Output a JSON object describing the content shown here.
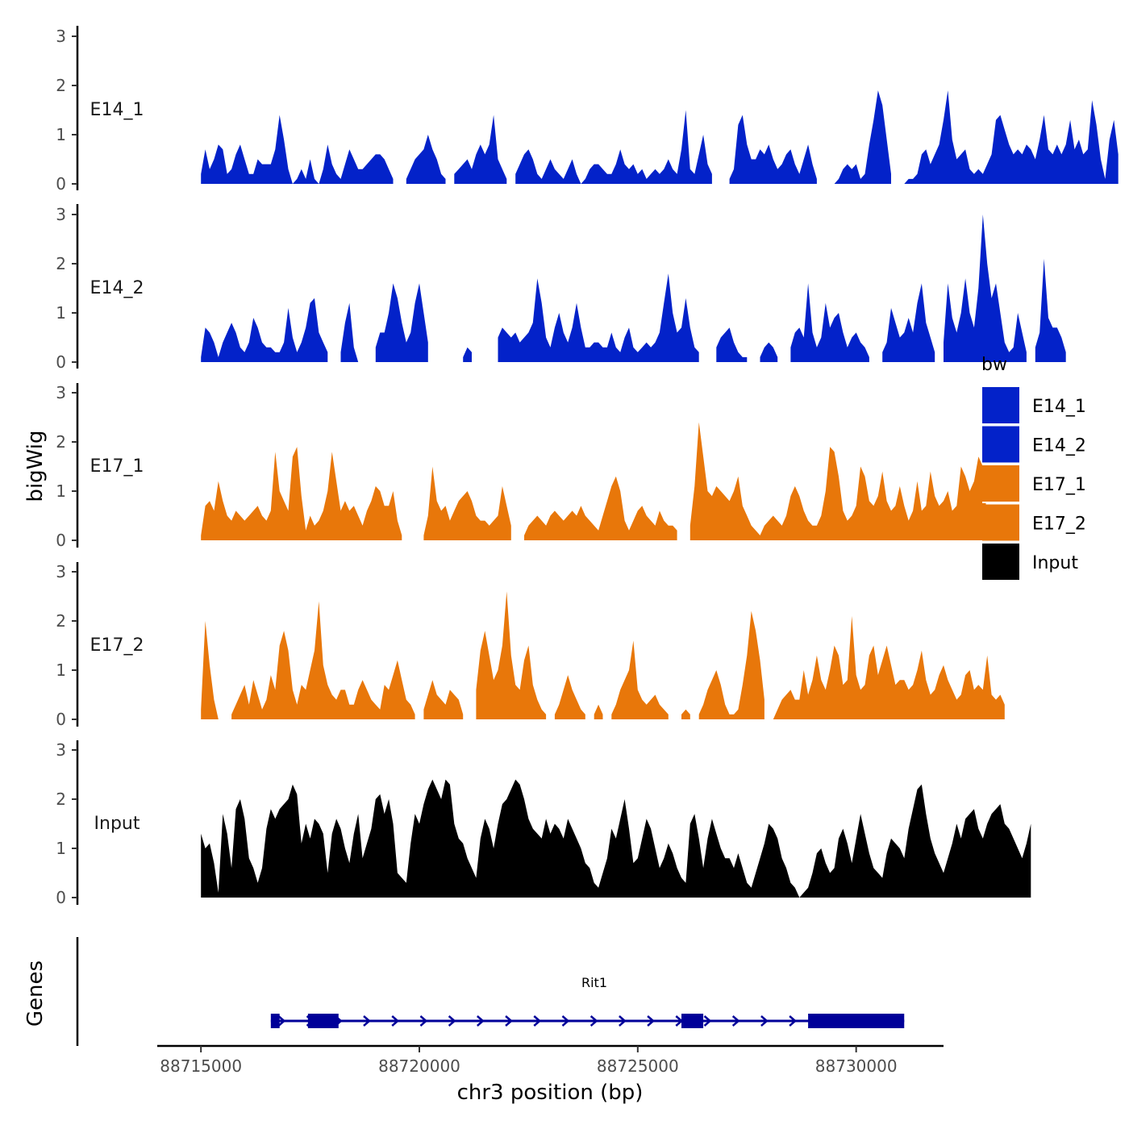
{
  "chart_data": {
    "type": "area",
    "y_axis_title": "bigWig",
    "gene_track_title": "Genes",
    "x_axis_title": "chr3 position (bp)",
    "x_range": [
      88714000,
      88732000
    ],
    "x_ticks": [
      88715000,
      88720000,
      88725000,
      88730000
    ],
    "x_tick_labels": [
      "88715000",
      "88720000",
      "88725000",
      "88730000"
    ],
    "y_range": [
      0,
      3.15
    ],
    "y_ticks": [
      0,
      1,
      2,
      3
    ],
    "y_tick_labels": [
      "0",
      "1",
      "2",
      "3"
    ],
    "legend": {
      "title": "bw",
      "position": "right",
      "entries": [
        {
          "label": "E14_1",
          "color": "#0322C9"
        },
        {
          "label": "E14_2",
          "color": "#0322C9"
        },
        {
          "label": "E17_1",
          "color": "#E8770A"
        },
        {
          "label": "E17_2",
          "color": "#E8770A"
        },
        {
          "label": "Input",
          "color": "#000000"
        }
      ]
    },
    "series": [
      {
        "name": "E14_1",
        "color": "#0322C9",
        "x_start": 88715000,
        "x_step": 100,
        "values": [
          0.2,
          0.7,
          0.3,
          0.5,
          0.8,
          0.7,
          0.2,
          0.3,
          0.6,
          0.8,
          0.5,
          0.2,
          0.2,
          0.5,
          0.4,
          0.4,
          0.4,
          0.7,
          1.4,
          0.9,
          0.3,
          0.0,
          0.1,
          0.3,
          0.1,
          0.5,
          0.1,
          0.0,
          0.3,
          0.8,
          0.4,
          0.2,
          0.1,
          0.4,
          0.7,
          0.5,
          0.3,
          0.3,
          0.4,
          0.5,
          0.6,
          0.6,
          0.5,
          0.3,
          0.1,
          null,
          null,
          0.1,
          0.3,
          0.5,
          0.6,
          0.7,
          1.0,
          0.7,
          0.5,
          0.2,
          0.1,
          null,
          0.2,
          0.3,
          0.4,
          0.5,
          0.3,
          0.6,
          0.8,
          0.6,
          0.8,
          1.4,
          0.5,
          0.3,
          0.1,
          null,
          0.2,
          0.4,
          0.6,
          0.7,
          0.5,
          0.2,
          0.1,
          0.3,
          0.5,
          0.3,
          0.2,
          0.1,
          0.3,
          0.5,
          0.2,
          0.0,
          0.1,
          0.3,
          0.4,
          0.4,
          0.3,
          0.2,
          0.2,
          0.4,
          0.7,
          0.4,
          0.3,
          0.4,
          0.2,
          0.3,
          0.1,
          0.2,
          0.3,
          0.2,
          0.3,
          0.5,
          0.3,
          0.2,
          0.7,
          1.5,
          0.3,
          0.2,
          0.6,
          1.0,
          0.4,
          0.2,
          null,
          null,
          null,
          0.1,
          0.3,
          1.2,
          1.4,
          0.8,
          0.5,
          0.5,
          0.7,
          0.6,
          0.8,
          0.5,
          0.3,
          0.4,
          0.6,
          0.7,
          0.4,
          0.2,
          0.5,
          0.8,
          0.4,
          0.1,
          null,
          null,
          null,
          0.0,
          0.1,
          0.3,
          0.4,
          0.3,
          0.4,
          0.1,
          0.2,
          0.8,
          1.3,
          1.9,
          1.6,
          0.9,
          0.2,
          null,
          null,
          0.0,
          0.1,
          0.1,
          0.2,
          0.6,
          0.7,
          0.4,
          0.6,
          0.8,
          1.3,
          1.9,
          0.9,
          0.5,
          0.6,
          0.7,
          0.3,
          0.2,
          0.3,
          0.2,
          0.4,
          0.6,
          1.3,
          1.4,
          1.1,
          0.8,
          0.6,
          0.7,
          0.6,
          0.8,
          0.7,
          0.5,
          0.9,
          1.4,
          0.7,
          0.6,
          0.8,
          0.6,
          0.8,
          1.3,
          0.7,
          0.9,
          0.6,
          0.7,
          1.7,
          1.2,
          0.5,
          0.1,
          0.9,
          1.3,
          0.6
        ]
      },
      {
        "name": "E14_2",
        "color": "#0322C9",
        "x_start": 88715000,
        "x_step": 100,
        "values": [
          0.1,
          0.7,
          0.6,
          0.4,
          0.1,
          0.4,
          0.6,
          0.8,
          0.6,
          0.3,
          0.2,
          0.4,
          0.9,
          0.7,
          0.4,
          0.3,
          0.3,
          0.2,
          0.2,
          0.4,
          1.1,
          0.5,
          0.2,
          0.4,
          0.7,
          1.2,
          1.3,
          0.6,
          0.4,
          0.2,
          null,
          null,
          0.2,
          0.8,
          1.2,
          0.3,
          0.0,
          null,
          null,
          null,
          0.3,
          0.6,
          0.6,
          1.0,
          1.6,
          1.3,
          0.8,
          0.4,
          0.6,
          1.2,
          1.6,
          1.0,
          0.4,
          null,
          null,
          null,
          null,
          null,
          null,
          null,
          0.1,
          0.3,
          0.2,
          null,
          null,
          null,
          null,
          null,
          0.5,
          0.7,
          0.6,
          0.5,
          0.6,
          0.4,
          0.5,
          0.6,
          0.8,
          1.7,
          1.2,
          0.5,
          0.3,
          0.7,
          1.0,
          0.6,
          0.4,
          0.7,
          1.2,
          0.7,
          0.3,
          0.3,
          0.4,
          0.4,
          0.3,
          0.3,
          0.6,
          0.3,
          0.2,
          0.5,
          0.7,
          0.3,
          0.2,
          0.3,
          0.4,
          0.3,
          0.4,
          0.6,
          1.2,
          1.8,
          1.0,
          0.6,
          0.7,
          1.3,
          0.7,
          0.3,
          0.2,
          null,
          null,
          null,
          0.3,
          0.5,
          0.6,
          0.7,
          0.4,
          0.2,
          0.1,
          0.1,
          null,
          null,
          0.1,
          0.3,
          0.4,
          0.3,
          0.1,
          null,
          null,
          0.3,
          0.6,
          0.7,
          0.5,
          1.6,
          0.6,
          0.3,
          0.5,
          1.2,
          0.7,
          0.9,
          1.0,
          0.6,
          0.3,
          0.5,
          0.6,
          0.4,
          0.3,
          0.1,
          null,
          null,
          0.2,
          0.4,
          1.1,
          0.8,
          0.5,
          0.6,
          0.9,
          0.6,
          1.2,
          1.6,
          0.8,
          0.5,
          0.2,
          null,
          0.4,
          1.6,
          0.9,
          0.6,
          1.0,
          1.7,
          1.0,
          0.7,
          1.5,
          3.0,
          2.0,
          1.3,
          1.6,
          1.0,
          0.4,
          0.2,
          0.3,
          1.0,
          0.6,
          0.2,
          null,
          0.3,
          0.6,
          2.1,
          0.9,
          0.7,
          0.7,
          0.5,
          0.2,
          null
        ]
      },
      {
        "name": "E17_1",
        "color": "#E8770A",
        "x_start": 88715000,
        "x_step": 100,
        "values": [
          0.1,
          0.7,
          0.8,
          0.6,
          1.2,
          0.8,
          0.5,
          0.4,
          0.6,
          0.5,
          0.4,
          0.5,
          0.6,
          0.7,
          0.5,
          0.4,
          0.6,
          1.8,
          1.0,
          0.8,
          0.6,
          1.7,
          1.9,
          0.9,
          0.2,
          0.5,
          0.3,
          0.4,
          0.6,
          1.0,
          1.8,
          1.2,
          0.6,
          0.8,
          0.6,
          0.7,
          0.5,
          0.3,
          0.6,
          0.8,
          1.1,
          1.0,
          0.7,
          0.7,
          1.0,
          0.4,
          0.1,
          null,
          null,
          null,
          null,
          0.1,
          0.5,
          1.5,
          0.8,
          0.6,
          0.7,
          0.4,
          0.6,
          0.8,
          0.9,
          1.0,
          0.8,
          0.5,
          0.4,
          0.4,
          0.3,
          0.4,
          0.5,
          1.1,
          0.7,
          0.3,
          null,
          null,
          0.1,
          0.3,
          0.4,
          0.5,
          0.4,
          0.3,
          0.5,
          0.6,
          0.5,
          0.4,
          0.5,
          0.6,
          0.5,
          0.7,
          0.5,
          0.4,
          0.3,
          0.2,
          0.5,
          0.8,
          1.1,
          1.3,
          1.0,
          0.4,
          0.2,
          0.4,
          0.6,
          0.7,
          0.5,
          0.4,
          0.3,
          0.6,
          0.4,
          0.3,
          0.3,
          0.2,
          null,
          null,
          0.3,
          1.1,
          2.4,
          1.7,
          1.0,
          0.9,
          1.1,
          1.0,
          0.9,
          0.8,
          1.0,
          1.3,
          0.7,
          0.5,
          0.3,
          0.2,
          0.1,
          0.3,
          0.4,
          0.5,
          0.4,
          0.3,
          0.5,
          0.9,
          1.1,
          0.9,
          0.6,
          0.4,
          0.3,
          0.3,
          0.5,
          1.0,
          1.9,
          1.8,
          1.3,
          0.6,
          0.4,
          0.5,
          0.7,
          1.5,
          1.3,
          0.8,
          0.7,
          0.9,
          1.4,
          0.8,
          0.6,
          0.7,
          1.1,
          0.7,
          0.4,
          0.6,
          1.2,
          0.6,
          0.7,
          1.4,
          0.9,
          0.7,
          0.8,
          1.0,
          0.6,
          0.7,
          1.5,
          1.3,
          1.0,
          1.2,
          1.7,
          1.5,
          0.4,
          0.4,
          null
        ]
      },
      {
        "name": "E17_2",
        "color": "#E8770A",
        "x_start": 88715000,
        "x_step": 100,
        "values": [
          0.2,
          2.0,
          1.1,
          0.4,
          0.0,
          null,
          null,
          0.1,
          0.3,
          0.5,
          0.7,
          0.3,
          0.8,
          0.5,
          0.2,
          0.4,
          0.9,
          0.6,
          1.5,
          1.8,
          1.4,
          0.6,
          0.3,
          0.7,
          0.6,
          1.0,
          1.4,
          2.4,
          1.1,
          0.7,
          0.5,
          0.4,
          0.6,
          0.6,
          0.3,
          0.3,
          0.6,
          0.8,
          0.6,
          0.4,
          0.3,
          0.2,
          0.7,
          0.6,
          0.9,
          1.2,
          0.8,
          0.4,
          0.3,
          0.1,
          null,
          0.2,
          0.5,
          0.8,
          0.5,
          0.4,
          0.3,
          0.6,
          0.5,
          0.4,
          0.1,
          null,
          null,
          0.6,
          1.4,
          1.8,
          1.3,
          0.8,
          1.0,
          1.5,
          2.6,
          1.3,
          0.7,
          0.6,
          1.2,
          1.5,
          0.7,
          0.4,
          0.2,
          0.1,
          null,
          0.1,
          0.3,
          0.6,
          0.9,
          0.6,
          0.4,
          0.2,
          0.1,
          null,
          0.1,
          0.3,
          0.1,
          null,
          0.1,
          0.3,
          0.6,
          0.8,
          1.0,
          1.6,
          0.6,
          0.4,
          0.3,
          0.4,
          0.5,
          0.3,
          0.2,
          0.1,
          null,
          null,
          0.1,
          0.2,
          0.1,
          null,
          0.1,
          0.3,
          0.6,
          0.8,
          1.0,
          0.7,
          0.3,
          0.1,
          0.1,
          0.2,
          0.7,
          1.3,
          2.2,
          1.8,
          1.2,
          0.4,
          null,
          0.0,
          0.2,
          0.4,
          0.5,
          0.6,
          0.4,
          0.4,
          1.0,
          0.5,
          0.8,
          1.3,
          0.8,
          0.6,
          1.0,
          1.5,
          1.3,
          0.7,
          0.8,
          2.1,
          0.9,
          0.6,
          0.7,
          1.3,
          1.5,
          0.9,
          1.2,
          1.5,
          1.1,
          0.7,
          0.8,
          0.8,
          0.6,
          0.7,
          1.0,
          1.4,
          0.8,
          0.5,
          0.6,
          0.9,
          1.1,
          0.8,
          0.6,
          0.4,
          0.5,
          0.9,
          1.0,
          0.6,
          0.7,
          0.6,
          1.3,
          0.5,
          0.4,
          0.5,
          0.3
        ]
      },
      {
        "name": "Input",
        "color": "#000000",
        "x_start": 88715000,
        "x_step": 100,
        "values": [
          1.3,
          1.0,
          1.1,
          0.7,
          0.1,
          1.7,
          1.3,
          0.6,
          1.8,
          2.0,
          1.6,
          0.8,
          0.6,
          0.3,
          0.6,
          1.4,
          1.8,
          1.6,
          1.8,
          1.9,
          2.0,
          2.3,
          2.1,
          1.1,
          1.5,
          1.2,
          1.6,
          1.5,
          1.3,
          0.5,
          1.3,
          1.6,
          1.4,
          1.0,
          0.7,
          1.3,
          1.7,
          0.8,
          1.1,
          1.4,
          2.0,
          2.1,
          1.7,
          2.0,
          1.5,
          0.5,
          0.4,
          0.3,
          1.1,
          1.7,
          1.5,
          1.9,
          2.2,
          2.4,
          2.2,
          2.0,
          2.4,
          2.3,
          1.5,
          1.2,
          1.1,
          0.8,
          0.6,
          0.4,
          1.2,
          1.6,
          1.4,
          1.0,
          1.5,
          1.9,
          2.0,
          2.2,
          2.4,
          2.3,
          2.0,
          1.6,
          1.4,
          1.3,
          1.2,
          1.6,
          1.3,
          1.5,
          1.4,
          1.2,
          1.6,
          1.4,
          1.2,
          1.0,
          0.7,
          0.6,
          0.3,
          0.2,
          0.5,
          0.8,
          1.4,
          1.2,
          1.6,
          2.0,
          1.4,
          0.7,
          0.8,
          1.2,
          1.6,
          1.4,
          1.0,
          0.6,
          0.8,
          1.1,
          0.9,
          0.6,
          0.4,
          0.3,
          1.5,
          1.7,
          1.2,
          0.6,
          1.2,
          1.6,
          1.3,
          1.0,
          0.8,
          0.8,
          0.6,
          0.9,
          0.6,
          0.3,
          0.2,
          0.5,
          0.8,
          1.1,
          1.5,
          1.4,
          1.2,
          0.8,
          0.6,
          0.3,
          0.2,
          0.0,
          0.1,
          0.2,
          0.5,
          0.9,
          1.0,
          0.7,
          0.5,
          0.6,
          1.2,
          1.4,
          1.1,
          0.7,
          1.2,
          1.7,
          1.3,
          0.9,
          0.6,
          0.5,
          0.4,
          0.9,
          1.2,
          1.1,
          1.0,
          0.8,
          1.4,
          1.8,
          2.2,
          2.3,
          1.7,
          1.2,
          0.9,
          0.7,
          0.5,
          0.8,
          1.1,
          1.5,
          1.2,
          1.6,
          1.7,
          1.8,
          1.4,
          1.2,
          1.5,
          1.7,
          1.8,
          1.9,
          1.5,
          1.4,
          1.2,
          1.0,
          0.8,
          1.1,
          1.5
        ]
      }
    ],
    "gene": {
      "label": "Rit1",
      "color": "#000099",
      "strand": "+",
      "start": 88716600,
      "end": 88731100,
      "exons": [
        {
          "start": 88716600,
          "end": 88716800
        },
        {
          "start": 88717450,
          "end": 88718150
        },
        {
          "start": 88726000,
          "end": 88726500
        },
        {
          "start": 88728900,
          "end": 88731100
        }
      ]
    }
  }
}
